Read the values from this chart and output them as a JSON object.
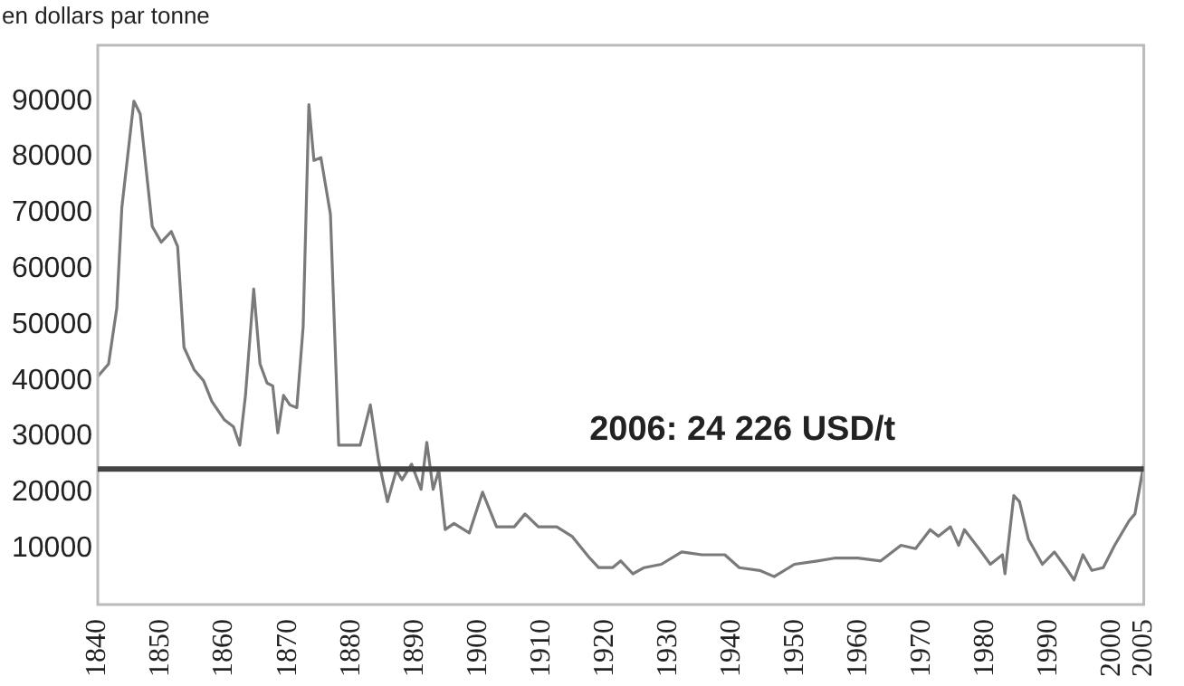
{
  "chart_data": {
    "type": "line",
    "ylabel": "en dollars par tonne",
    "x": [
      1840,
      1841.7,
      1843,
      1843.8,
      1845.7,
      1846.7,
      1848.6,
      1850,
      1851.6,
      1852.6,
      1853.6,
      1855.2,
      1856.7,
      1858,
      1860,
      1861.4,
      1862.4,
      1863.3,
      1864.6,
      1865.6,
      1866.7,
      1867.6,
      1868.4,
      1869.3,
      1870.3,
      1871.4,
      1872.4,
      1873.3,
      1874.1,
      1875.2,
      1876.7,
      1878,
      1880,
      1881.4,
      1883,
      1884.3,
      1885.7,
      1887.1,
      1888,
      1889.5,
      1891,
      1891.9,
      1892.9,
      1893.8,
      1894.8,
      1896.2,
      1898.6,
      1900.7,
      1902.9,
      1905.7,
      1907.4,
      1909.5,
      1912.4,
      1914.8,
      1917.6,
      1919,
      1921.2,
      1922.5,
      1924.4,
      1926.2,
      1928.9,
      1932.1,
      1935.3,
      1938.9,
      1941.2,
      1944.4,
      1946.7,
      1949.9,
      1953.5,
      1956.2,
      1959.9,
      1963.5,
      1966.7,
      1969,
      1971.3,
      1972.6,
      1974.5,
      1975.8,
      1976.7,
      1979,
      1980.8,
      1982.7,
      1983.1,
      1984.5,
      1985.4,
      1986.8,
      1989,
      1990.9,
      1992.7,
      1994,
      1995.4,
      1996.8,
      1998.6,
      2000.4,
      2002.7,
      2003.6,
      2005
    ],
    "series": [
      {
        "color": "#7a7a7a",
        "values": [
          40800,
          43000,
          53000,
          71000,
          90000,
          87700,
          67600,
          64800,
          66700,
          64000,
          46000,
          42000,
          40000,
          36300,
          33000,
          31800,
          28500,
          37400,
          56400,
          43000,
          39600,
          39100,
          30700,
          37400,
          35700,
          35200,
          49700,
          89400,
          79400,
          79900,
          69800,
          28500,
          28500,
          28500,
          35700,
          25700,
          18400,
          24000,
          22300,
          25100,
          20600,
          29000,
          20600,
          24000,
          13400,
          14500,
          12800,
          20100,
          13900,
          13900,
          16200,
          13900,
          13900,
          12200,
          8300,
          6600,
          6600,
          7800,
          5500,
          6600,
          7200,
          9400,
          8900,
          8900,
          6600,
          6100,
          5000,
          7200,
          7800,
          8300,
          8300,
          7800,
          10600,
          10000,
          13400,
          12200,
          13900,
          10600,
          13400,
          10000,
          7200,
          8900,
          5500,
          19500,
          18400,
          11700,
          7200,
          9400,
          6600,
          4400,
          8900,
          6100,
          6600,
          10600,
          15000,
          16200,
          25100
        ]
      }
    ],
    "xlim": [
      1840,
      2005
    ],
    "xticks": [
      1840,
      1850,
      1860,
      1870,
      1880,
      1890,
      1900,
      1910,
      1920,
      1930,
      1940,
      1950,
      1960,
      1970,
      1980,
      1990,
      2000,
      2005
    ],
    "ylim": [
      0,
      100000
    ],
    "yticks": [
      10000,
      20000,
      30000,
      40000,
      50000,
      60000,
      70000,
      80000,
      90000
    ],
    "ref_lines": [
      {
        "axis": "y",
        "value": 24226,
        "label": "2006: 24 226 USD/t",
        "color": "#444444"
      }
    ],
    "grid": false,
    "legend": false,
    "marker": "none",
    "line_style": "solid"
  }
}
